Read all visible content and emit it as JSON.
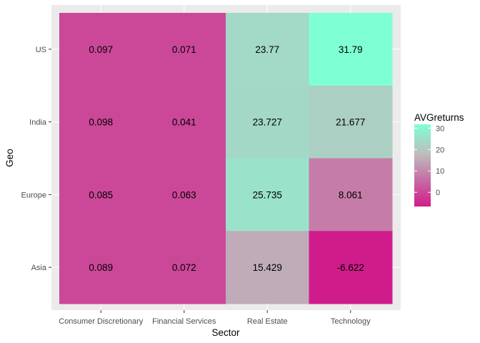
{
  "chart_data": {
    "type": "heatmap",
    "xlabel": "Sector",
    "ylabel": "Geo",
    "x_categories": [
      "Consumer Discretionary",
      "Financial Services",
      "Real Estate",
      "Technology"
    ],
    "y_categories": [
      "Asia",
      "Europe",
      "India",
      "US"
    ],
    "cells": [
      {
        "x": "Consumer Discretionary",
        "y": "US",
        "value": 0.097,
        "label": "0.097"
      },
      {
        "x": "Financial Services",
        "y": "US",
        "value": 0.071,
        "label": "0.071"
      },
      {
        "x": "Real Estate",
        "y": "US",
        "value": 23.77,
        "label": "23.77"
      },
      {
        "x": "Technology",
        "y": "US",
        "value": 31.79,
        "label": "31.79"
      },
      {
        "x": "Consumer Discretionary",
        "y": "India",
        "value": 0.098,
        "label": "0.098"
      },
      {
        "x": "Financial Services",
        "y": "India",
        "value": 0.041,
        "label": "0.041"
      },
      {
        "x": "Real Estate",
        "y": "India",
        "value": 23.727,
        "label": "23.727"
      },
      {
        "x": "Technology",
        "y": "India",
        "value": 21.677,
        "label": "21.677"
      },
      {
        "x": "Consumer Discretionary",
        "y": "Europe",
        "value": 0.085,
        "label": "0.085"
      },
      {
        "x": "Financial Services",
        "y": "Europe",
        "value": 0.063,
        "label": "0.063"
      },
      {
        "x": "Real Estate",
        "y": "Europe",
        "value": 25.735,
        "label": "25.735"
      },
      {
        "x": "Technology",
        "y": "Europe",
        "value": 8.061,
        "label": "8.061"
      },
      {
        "x": "Consumer Discretionary",
        "y": "Asia",
        "value": 0.089,
        "label": "0.089"
      },
      {
        "x": "Financial Services",
        "y": "Asia",
        "value": 0.072,
        "label": "0.072"
      },
      {
        "x": "Real Estate",
        "y": "Asia",
        "value": 15.429,
        "label": "15.429"
      },
      {
        "x": "Technology",
        "y": "Asia",
        "value": -6.622,
        "label": "-6.622"
      }
    ],
    "legend": {
      "title": "AVGreturns",
      "placement": "right",
      "ticks": [
        0,
        10,
        20,
        30
      ],
      "range": [
        -6.622,
        31.79
      ],
      "low_color": "#D01C8B",
      "mid_color": "#BDBDBD",
      "high_color": "#7FFFD4",
      "midpoint": 18
    },
    "panel_background": "#EBEBEB",
    "grid": true
  }
}
